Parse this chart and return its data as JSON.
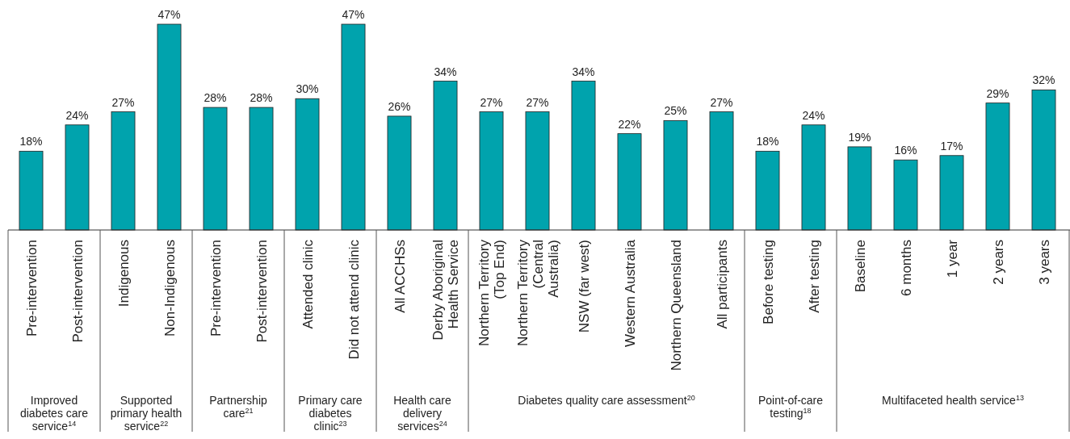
{
  "chart_data": {
    "type": "bar",
    "categories": [
      "Pre-intervention",
      "Post-intervention",
      "Indigenous",
      "Non-Indigenous",
      "Pre-intervention",
      "Post-intervention",
      "Attended clinic",
      "Did not attend clinic",
      "All ACCHSs",
      "Derby Aboriginal Health Service",
      "Northern Territory (Top End)",
      "Northern Territory (Central Australia)",
      "NSW (far west)",
      "Western Australia",
      "Northern Queensland",
      "All participants",
      "Before testing",
      "After testing",
      "Baseline",
      "6 months",
      "1 year",
      "2 years",
      "3 years"
    ],
    "series": [
      {
        "color": "#00a3ad",
        "values": [
          18,
          24,
          27,
          47,
          28,
          28,
          30,
          47,
          26,
          34,
          27,
          27,
          34,
          22,
          25,
          27,
          18,
          24,
          19,
          16,
          17,
          29,
          32
        ],
        "value_labels": [
          "18%",
          "24%",
          "27%",
          "47%",
          "28%",
          "28%",
          "30%",
          "47%",
          "26%",
          "34%",
          "27%",
          "27%",
          "34%",
          "22%",
          "25%",
          "27%",
          "18%",
          "24%",
          "19%",
          "16%",
          "17%",
          "29%",
          "32%"
        ]
      }
    ],
    "annotations": [
      "Improved diabetes care service$^{14}$",
      "Supported primary health service$^{22}$",
      "Partnership care$^{21}$",
      "Primary care diabetes clinic$^{23}$",
      "Health care delivery services$^{24}$",
      "Diabetes quality care assessment$^{20}$",
      "Point-of-care testing$^{18}$",
      "Multifaceted health service$^{13}$"
    ]
  }
}
